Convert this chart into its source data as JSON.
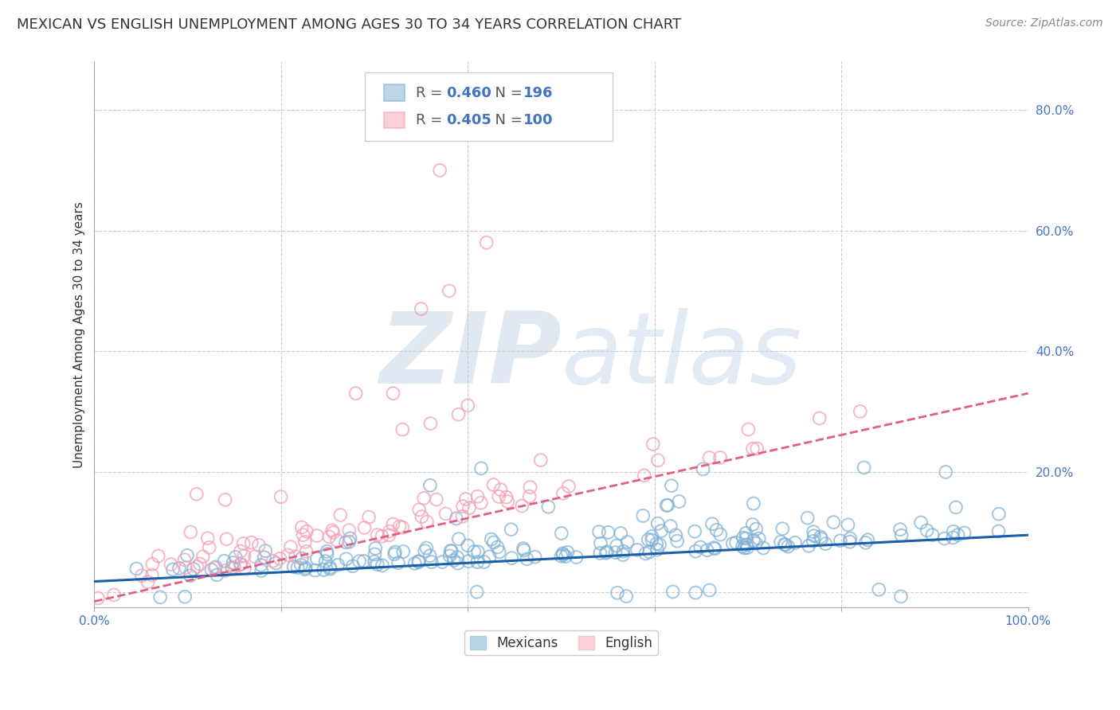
{
  "title": "MEXICAN VS ENGLISH UNEMPLOYMENT AMONG AGES 30 TO 34 YEARS CORRELATION CHART",
  "source": "Source: ZipAtlas.com",
  "ylabel": "Unemployment Among Ages 30 to 34 years",
  "xlim": [
    0.0,
    1.0
  ],
  "ylim": [
    -0.025,
    0.88
  ],
  "yticks": [
    0.0,
    0.2,
    0.4,
    0.6,
    0.8
  ],
  "ytick_labels": [
    "",
    "20.0%",
    "40.0%",
    "60.0%",
    "80.0%"
  ],
  "xticks": [
    0.0,
    0.2,
    0.4,
    0.6,
    0.8,
    1.0
  ],
  "xtick_labels": [
    "0.0%",
    "",
    "",
    "",
    "",
    "100.0%"
  ],
  "mexicans_color": "#7bafd4",
  "english_color": "#f4a0b5",
  "mexicans_line_color": "#1a5fa8",
  "english_line_color": "#e06080",
  "legend_R_mexicans": "0.460",
  "legend_N_mexicans": "196",
  "legend_R_english": "0.405",
  "legend_N_english": "100",
  "background_color": "#ffffff",
  "grid_color": "#cccccc",
  "watermark_zip": "ZIP",
  "watermark_atlas": "atlas",
  "title_fontsize": 13,
  "axis_label_fontsize": 11,
  "tick_fontsize": 11,
  "source_fontsize": 10,
  "seed": 42,
  "mexicans_n": 196,
  "english_n": 100,
  "mex_line_x0": 0.0,
  "mex_line_y0": 0.018,
  "mex_line_x1": 1.0,
  "mex_line_y1": 0.095,
  "eng_line_x0": 0.0,
  "eng_line_y0": -0.015,
  "eng_line_x1": 1.0,
  "eng_line_y1": 0.33
}
